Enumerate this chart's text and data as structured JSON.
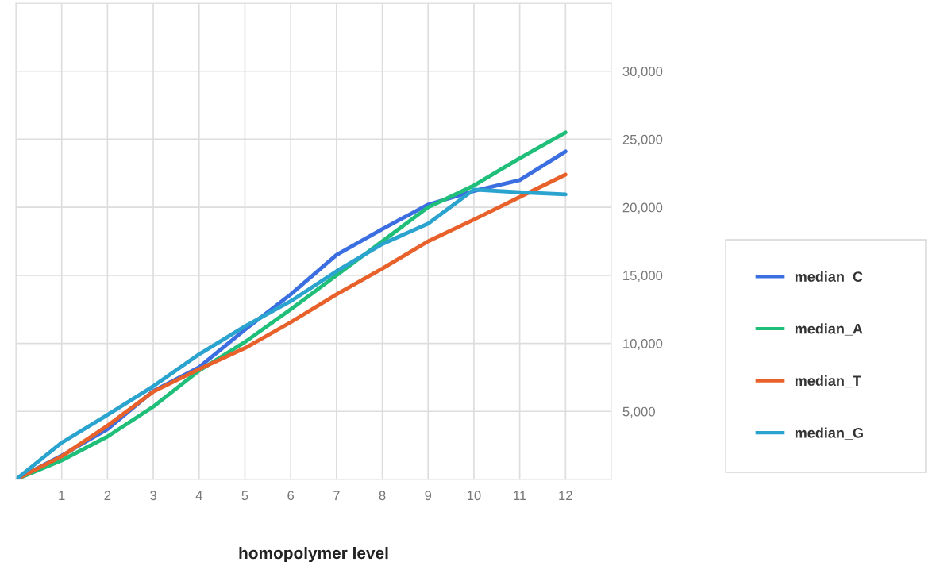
{
  "chart_data": {
    "type": "line",
    "xlabel": "homopolymer level",
    "x": [
      0,
      1,
      2,
      3,
      4,
      5,
      6,
      7,
      8,
      9,
      10,
      11,
      12
    ],
    "series": [
      {
        "name": "median_C",
        "color": "#3b6ee0",
        "values": [
          0,
          1750,
          3700,
          6500,
          8250,
          11000,
          13600,
          16500,
          18400,
          20200,
          21200,
          22000,
          24100
        ]
      },
      {
        "name": "median_A",
        "color": "#1fbf7a",
        "values": [
          0,
          1400,
          3150,
          5350,
          8000,
          10100,
          12500,
          15000,
          17500,
          20000,
          21600,
          23600,
          25500
        ]
      },
      {
        "name": "median_T",
        "color": "#e8602a",
        "values": [
          0,
          1700,
          3950,
          6450,
          8100,
          9650,
          11550,
          13600,
          15500,
          17500,
          19100,
          20750,
          22400
        ]
      },
      {
        "name": "median_G",
        "color": "#2ba3cf",
        "values": [
          0,
          2700,
          4750,
          6850,
          9200,
          11250,
          13100,
          15300,
          17300,
          18800,
          21300,
          21100,
          20950
        ]
      }
    ],
    "xlim": [
      0,
      13
    ],
    "ylim": [
      0,
      35000
    ],
    "xticks": [
      {
        "value": 0,
        "label": null
      },
      1,
      2,
      3,
      4,
      5,
      6,
      7,
      8,
      9,
      10,
      11,
      12,
      {
        "value": 13,
        "label": null
      }
    ],
    "yticks": [
      {
        "value": 0,
        "label": null
      },
      {
        "value": 5000,
        "label": "5,000"
      },
      {
        "value": 10000,
        "label": "10,000"
      },
      {
        "value": 15000,
        "label": "15,000"
      },
      {
        "value": 20000,
        "label": "20,000"
      },
      {
        "value": 25000,
        "label": "25,000"
      },
      {
        "value": 30000,
        "label": "30,000"
      },
      {
        "value": 35000,
        "label": null
      }
    ],
    "grid": true,
    "legend": "right",
    "marker": "none",
    "line_style": "solid"
  }
}
